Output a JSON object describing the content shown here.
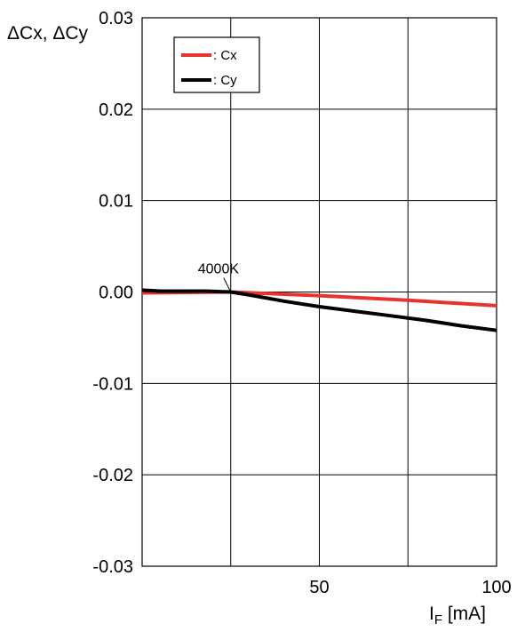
{
  "chart_data": {
    "type": "line",
    "title": "",
    "ylabel": "ΔCx, ΔCy",
    "xlabel_main": "I",
    "xlabel_sub": "F",
    "xlabel_unit": " [mA]",
    "xlim": [
      0,
      100
    ],
    "ylim": [
      -0.03,
      0.03
    ],
    "x_ticks": [
      50,
      100
    ],
    "x_tick_labels": [
      "50",
      "100"
    ],
    "x_gridlines": [
      25,
      50,
      75,
      100
    ],
    "y_ticks": [
      0.03,
      0.02,
      0.01,
      0.0,
      -0.01,
      -0.02,
      -0.03
    ],
    "y_tick_labels": [
      "0.03",
      "0.02",
      "0.01",
      "0.00",
      "-0.01",
      "-0.02",
      "-0.03"
    ],
    "grid": true,
    "legend_position": "top-left",
    "series": [
      {
        "name": ": Cx",
        "color": "#e8332f",
        "x": [
          0,
          25,
          50,
          75,
          100
        ],
        "y": [
          -0.0001,
          0.0,
          -0.0004,
          -0.0009,
          -0.0015
        ]
      },
      {
        "name": ": Cy",
        "color": "#000000",
        "x": [
          0,
          5,
          12,
          18,
          25,
          30,
          40,
          50,
          60,
          70,
          80,
          90,
          100
        ],
        "y": [
          0.0002,
          0.0001,
          0.0001,
          0.0001,
          0.0,
          -0.0003,
          -0.001,
          -0.0016,
          -0.0021,
          -0.0026,
          -0.0031,
          -0.0037,
          -0.0042
        ]
      }
    ],
    "annotations": [
      {
        "text": "4000K",
        "x": 25,
        "y": 0.0
      }
    ]
  }
}
